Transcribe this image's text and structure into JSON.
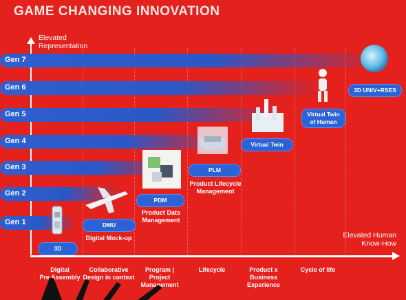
{
  "title": "GAME CHANGING INNOVATION",
  "y_axis_label": [
    "Elevated",
    "Representation"
  ],
  "x_axis_label": [
    "Elevated Human",
    "Know-How"
  ],
  "generations": [
    "Gen 7",
    "Gen 6",
    "Gen 5",
    "Gen 4",
    "Gen 3",
    "Gen 2",
    "Gen 1"
  ],
  "milestones": {
    "3d": "3D",
    "dmu": "DMU",
    "dmu_caption": "Digital Mock-up",
    "pdm": "PDM",
    "pdm_caption": [
      "Product Data",
      "Management"
    ],
    "plm": "PLM",
    "plm_caption": [
      "Product Lifecycle",
      "Management"
    ],
    "virtual_twin": "Virtual Twin",
    "virtual_twin_human": [
      "Virtual Twin",
      "of Human"
    ],
    "universes": "3D UNIV+RSES"
  },
  "bottom_labels": {
    "b1": [
      "Digital",
      "Pre Assembly"
    ],
    "b2": [
      "Collaborative",
      "Design in context"
    ],
    "b3": [
      "Program | Project",
      "Management"
    ],
    "b4": [
      "Lifecycle"
    ],
    "b5": [
      "Product x",
      "Business",
      "Experience"
    ],
    "b6": [
      "Cycle of life"
    ]
  },
  "colors": {
    "background": "#e5211e",
    "bar": "#2f5fd1",
    "pill": "#2b63d6"
  }
}
